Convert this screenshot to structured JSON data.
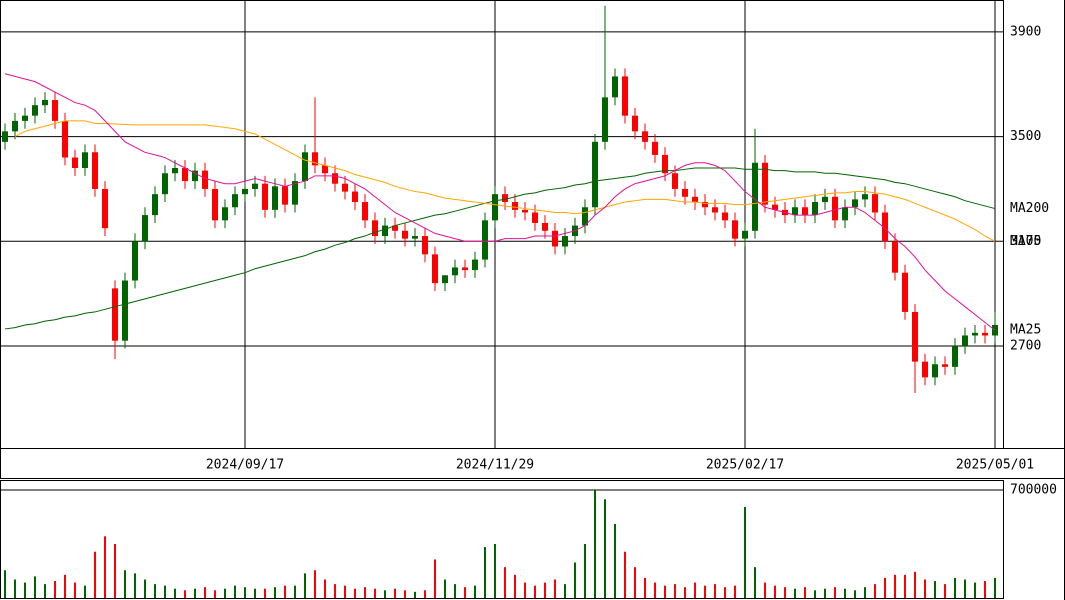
{
  "chart_data": {
    "type": "candlestick",
    "categories": [
      null,
      null,
      null,
      null,
      null,
      null,
      null,
      null,
      null,
      null,
      null,
      null,
      null,
      null,
      null,
      null,
      null,
      null,
      null,
      null,
      null,
      null,
      null,
      null,
      "2024/09/17",
      null,
      null,
      null,
      null,
      null,
      null,
      null,
      null,
      null,
      null,
      null,
      null,
      null,
      null,
      null,
      null,
      null,
      null,
      null,
      null,
      null,
      null,
      null,
      null,
      "2024/11/29",
      null,
      null,
      null,
      null,
      null,
      null,
      null,
      null,
      null,
      null,
      null,
      null,
      null,
      null,
      null,
      null,
      null,
      null,
      null,
      null,
      null,
      null,
      null,
      null,
      "2025/02/17",
      null,
      null,
      null,
      null,
      null,
      null,
      null,
      null,
      null,
      null,
      null,
      null,
      null,
      null,
      null,
      null,
      null,
      null,
      null,
      null,
      null,
      null,
      null,
      null,
      "2025/05/01"
    ],
    "open": [
      3480,
      3520,
      3560,
      3580,
      3620,
      3640,
      3560,
      3420,
      3380,
      3440,
      3300,
      2920,
      2720,
      2950,
      3100,
      3200,
      3280,
      3360,
      3380,
      3330,
      3370,
      3300,
      3180,
      3230,
      3280,
      3300,
      3320,
      3220,
      3310,
      3240,
      3330,
      3440,
      3390,
      3360,
      3320,
      3290,
      3250,
      3180,
      3120,
      3160,
      3140,
      3110,
      3120,
      3050,
      2940,
      2970,
      3000,
      2990,
      3030,
      3180,
      3280,
      3250,
      3220,
      3210,
      3170,
      3140,
      3080,
      3120,
      3160,
      3230,
      3480,
      3650,
      3730,
      3580,
      3520,
      3480,
      3430,
      3360,
      3300,
      3270,
      3250,
      3230,
      3210,
      3180,
      3110,
      3140,
      3400,
      3240,
      3220,
      3200,
      3230,
      3200,
      3250,
      3270,
      3180,
      3230,
      3260,
      3280,
      3210,
      3100,
      2980,
      2830,
      2640,
      2580,
      2630,
      2620,
      2700,
      2740,
      2750,
      2740
    ],
    "high": [
      3550,
      3590,
      3610,
      3650,
      3670,
      3670,
      3590,
      3450,
      3470,
      3470,
      3330,
      2950,
      2980,
      3130,
      3230,
      3310,
      3390,
      3410,
      3410,
      3400,
      3400,
      3330,
      3260,
      3310,
      3330,
      3350,
      3350,
      3340,
      3340,
      3360,
      3470,
      3650,
      3420,
      3390,
      3350,
      3320,
      3280,
      3210,
      3190,
      3190,
      3170,
      3150,
      3150,
      3080,
      2970,
      3030,
      3030,
      3060,
      3210,
      3310,
      3310,
      3280,
      3250,
      3240,
      3200,
      3170,
      3150,
      3190,
      3260,
      3510,
      4000,
      3760,
      3760,
      3610,
      3550,
      3510,
      3460,
      3390,
      3330,
      3300,
      3280,
      3260,
      3240,
      3210,
      3170,
      3530,
      3430,
      3270,
      3250,
      3260,
      3260,
      3280,
      3300,
      3300,
      3260,
      3290,
      3310,
      3310,
      3240,
      3130,
      3010,
      2860,
      2670,
      2660,
      2660,
      2730,
      2770,
      2780,
      2780,
      2830
    ],
    "low": [
      3450,
      3490,
      3530,
      3550,
      3590,
      3530,
      3390,
      3350,
      3350,
      3270,
      3120,
      2650,
      2690,
      2920,
      3070,
      3170,
      3250,
      3330,
      3300,
      3300,
      3270,
      3150,
      3150,
      3200,
      3250,
      3270,
      3190,
      3190,
      3210,
      3210,
      3300,
      3360,
      3330,
      3290,
      3260,
      3220,
      3150,
      3090,
      3090,
      3110,
      3080,
      3080,
      3020,
      2910,
      2910,
      2940,
      2960,
      2960,
      3000,
      3150,
      3220,
      3190,
      3180,
      3140,
      3110,
      3050,
      3050,
      3090,
      3130,
      3200,
      3450,
      3620,
      3550,
      3490,
      3450,
      3400,
      3330,
      3270,
      3240,
      3220,
      3200,
      3180,
      3150,
      3080,
      3080,
      3110,
      3210,
      3190,
      3170,
      3170,
      3170,
      3170,
      3220,
      3150,
      3150,
      3200,
      3230,
      3180,
      3070,
      2950,
      2800,
      2520,
      2550,
      2550,
      2590,
      2590,
      2670,
      2710,
      2710,
      2710
    ],
    "close": [
      3520,
      3560,
      3580,
      3620,
      3640,
      3560,
      3420,
      3380,
      3440,
      3300,
      3150,
      2720,
      2950,
      3100,
      3200,
      3280,
      3360,
      3380,
      3330,
      3370,
      3300,
      3180,
      3230,
      3280,
      3300,
      3320,
      3220,
      3310,
      3240,
      3330,
      3440,
      3390,
      3360,
      3320,
      3290,
      3250,
      3180,
      3120,
      3160,
      3140,
      3110,
      3120,
      3050,
      2940,
      2970,
      3000,
      2990,
      3030,
      3180,
      3280,
      3250,
      3220,
      3210,
      3170,
      3140,
      3080,
      3120,
      3160,
      3230,
      3480,
      3650,
      3730,
      3580,
      3520,
      3480,
      3430,
      3360,
      3300,
      3270,
      3250,
      3230,
      3210,
      3180,
      3110,
      3140,
      3400,
      3240,
      3220,
      3200,
      3230,
      3200,
      3250,
      3270,
      3180,
      3230,
      3260,
      3280,
      3210,
      3100,
      2980,
      2830,
      2640,
      2580,
      2630,
      2620,
      2700,
      2740,
      2750,
      2740,
      2780
    ],
    "up_color": "#006400",
    "down_color": "#ff0000",
    "series": [
      {
        "name": "MA200",
        "color": "#006400",
        "values": [
          2765,
          2770,
          2780,
          2785,
          2795,
          2800,
          2810,
          2815,
          2825,
          2830,
          2840,
          2850,
          2860,
          2870,
          2880,
          2890,
          2900,
          2910,
          2920,
          2930,
          2940,
          2950,
          2960,
          2970,
          2980,
          2995,
          3005,
          3015,
          3025,
          3035,
          3045,
          3060,
          3070,
          3085,
          3095,
          3110,
          3120,
          3135,
          3145,
          3160,
          3170,
          3180,
          3190,
          3200,
          3205,
          3215,
          3225,
          3235,
          3245,
          3255,
          3260,
          3270,
          3280,
          3285,
          3295,
          3300,
          3305,
          3315,
          3320,
          3330,
          3335,
          3340,
          3345,
          3350,
          3360,
          3365,
          3370,
          3370,
          3375,
          3380,
          3380,
          3380,
          3380,
          3380,
          3375,
          3375,
          3375,
          3370,
          3370,
          3365,
          3365,
          3365,
          3360,
          3360,
          3355,
          3350,
          3345,
          3340,
          3335,
          3325,
          3320,
          3310,
          3300,
          3290,
          3280,
          3270,
          3255,
          3245,
          3235,
          3225
        ]
      },
      {
        "name": "MA75",
        "color": "#ffa500",
        "values": [
          null,
          3500,
          3520,
          3530,
          3540,
          3550,
          3560,
          3560,
          3560,
          3550,
          3550,
          3548,
          3546,
          3545,
          3545,
          3545,
          3545,
          3545,
          3545,
          3545,
          3545,
          3540,
          3535,
          3530,
          3520,
          3510,
          3490,
          3470,
          3450,
          3430,
          3410,
          3400,
          3390,
          3380,
          3370,
          3355,
          3345,
          3335,
          3325,
          3310,
          3300,
          3290,
          3285,
          3275,
          3265,
          3260,
          3255,
          3250,
          3245,
          3240,
          3235,
          3230,
          3225,
          3220,
          3215,
          3210,
          3210,
          3205,
          3210,
          3220,
          3230,
          3240,
          3250,
          3255,
          3260,
          3260,
          3260,
          3255,
          3250,
          3250,
          3245,
          3245,
          3245,
          3240,
          3240,
          3245,
          3250,
          3255,
          3260,
          3265,
          3270,
          3275,
          3280,
          3285,
          3285,
          3290,
          3290,
          3285,
          3280,
          3270,
          3260,
          3245,
          3230,
          3215,
          3200,
          3185,
          3165,
          3145,
          3120,
          3100
        ]
      },
      {
        "name": "MA25",
        "color": "#e0109a",
        "values": [
          3740,
          3730,
          3720,
          3710,
          3690,
          3670,
          3650,
          3630,
          3620,
          3600,
          3560,
          3520,
          3480,
          3460,
          3440,
          3430,
          3420,
          3400,
          3380,
          3360,
          3340,
          3330,
          3320,
          3320,
          3330,
          3340,
          3330,
          3320,
          3310,
          3320,
          3330,
          3350,
          3350,
          3350,
          3340,
          3320,
          3300,
          3270,
          3240,
          3210,
          3190,
          3170,
          3150,
          3130,
          3120,
          3110,
          3100,
          3100,
          3100,
          3100,
          3110,
          3110,
          3110,
          3120,
          3120,
          3120,
          3130,
          3140,
          3160,
          3200,
          3230,
          3270,
          3300,
          3320,
          3330,
          3340,
          3350,
          3370,
          3390,
          3400,
          3400,
          3390,
          3370,
          3330,
          3290,
          3260,
          3230,
          3220,
          3210,
          3200,
          3200,
          3200,
          3210,
          3220,
          3230,
          3230,
          3210,
          3180,
          3150,
          3110,
          3080,
          3040,
          2990,
          2950,
          2910,
          2880,
          2850,
          2820,
          2790,
          2760
        ]
      }
    ],
    "ylim": [
      2310,
      4022
    ],
    "yticks": [
      2700,
      3100,
      3500,
      3900
    ],
    "grid": true,
    "volume": {
      "values": [
        180000,
        120000,
        100000,
        140000,
        90000,
        110000,
        150000,
        100000,
        80000,
        300000,
        400000,
        350000,
        180000,
        160000,
        120000,
        90000,
        80000,
        60000,
        50000,
        60000,
        70000,
        50000,
        60000,
        80000,
        70000,
        60000,
        60000,
        70000,
        80000,
        80000,
        160000,
        180000,
        120000,
        90000,
        80000,
        60000,
        70000,
        60000,
        50000,
        60000,
        50000,
        40000,
        50000,
        250000,
        120000,
        90000,
        70000,
        80000,
        330000,
        350000,
        200000,
        150000,
        100000,
        80000,
        100000,
        120000,
        90000,
        230000,
        350000,
        700000,
        640000,
        480000,
        300000,
        200000,
        130000,
        100000,
        80000,
        90000,
        70000,
        100000,
        80000,
        90000,
        70000,
        80000,
        590000,
        200000,
        100000,
        80000,
        70000,
        60000,
        70000,
        50000,
        60000,
        70000,
        60000,
        50000,
        70000,
        90000,
        130000,
        150000,
        150000,
        170000,
        120000,
        110000,
        90000,
        130000,
        120000,
        100000,
        110000,
        130000
      ],
      "ylim": [
        0,
        765000
      ],
      "yticks": [
        700000
      ]
    }
  }
}
